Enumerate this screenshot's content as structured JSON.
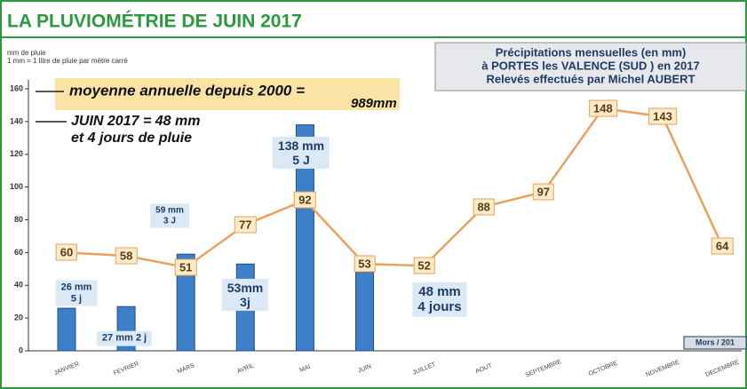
{
  "chart_data": {
    "type": "bar",
    "title": "LA PLUVIOMÉTRIE DE JUIN 2017",
    "y_label_lines": [
      "mm de pluie",
      "1 mm = 1 litre de pluie par mètre carré"
    ],
    "info_box": [
      "Précipitations mensuelles (en mm)",
      "à PORTES les VALENCE (SUD ) en 2017",
      "Relevés effectués par Michel AUBERT"
    ],
    "annotations": [
      "moyenne annuelle depuis 2000 =",
      "989mm",
      "JUIN 2017 = 48 mm",
      "et 4 jours de pluie"
    ],
    "credit": "Mors / 201",
    "categories": [
      "JANVIER",
      "FEVRIER",
      "MARS",
      "AVRIL",
      "MAI",
      "JUIN",
      "JUILLET",
      "AOUT",
      "SEPTEMBRE",
      "OCTOBRE",
      "NOVEMBRE",
      "DECEMBRE"
    ],
    "series": [
      {
        "type": "bar",
        "color": "#3d7fc9",
        "values": [
          26,
          27,
          59,
          53,
          138,
          48,
          null,
          null,
          null,
          null,
          null,
          null
        ],
        "value_labels": [
          "26 mm\n5 j",
          "27 mm 2 j",
          "59 mm\n3 J",
          "53mm\n3j",
          "138 mm\n5 J",
          "48  mm\n4 jours",
          null,
          null,
          null,
          null,
          null,
          null
        ]
      },
      {
        "type": "line",
        "color": "#e9a15c",
        "values": [
          60,
          58,
          51,
          77,
          92,
          53,
          52,
          88,
          97,
          148,
          143,
          64
        ]
      }
    ],
    "ylim": [
      0,
      160
    ],
    "yticks": [
      0,
      20,
      40,
      60,
      80,
      100,
      120,
      140,
      160
    ]
  }
}
